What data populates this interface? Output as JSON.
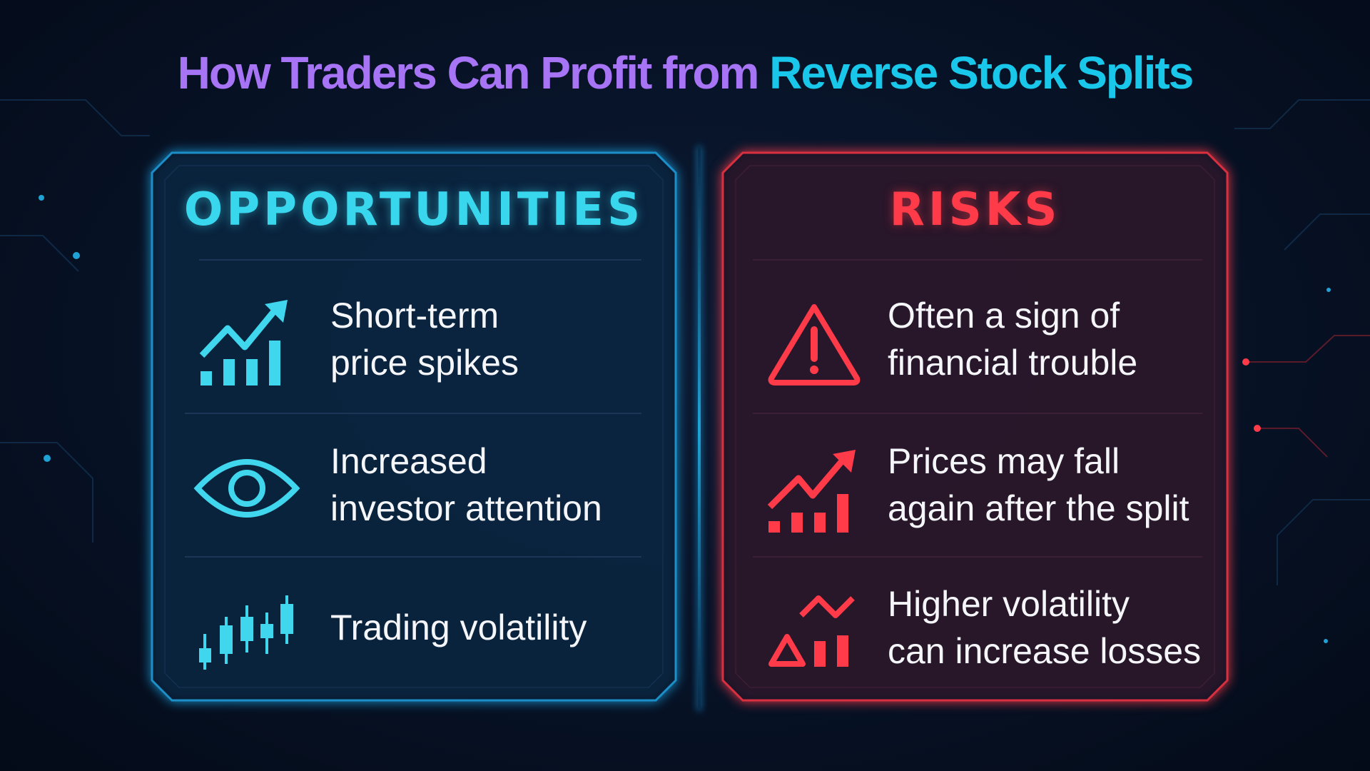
{
  "title": {
    "part1": "How Traders Can Profit from",
    "part2": "Reverse Stock Splits"
  },
  "colors": {
    "purple": "#a774f5",
    "cyan": "#19c7ea",
    "red": "#ff3b4a",
    "background": "#071226"
  },
  "opportunities": {
    "heading": "OPPORTUNITIES",
    "items": [
      {
        "icon": "rising-chart-icon",
        "line1": "Short-term",
        "line2": "price spikes"
      },
      {
        "icon": "eye-icon",
        "line1": "Increased",
        "line2": "investor attention"
      },
      {
        "icon": "candlestick-icon",
        "line1": "Trading volatility",
        "line2": ""
      }
    ]
  },
  "risks": {
    "heading": "RISKS",
    "items": [
      {
        "icon": "warning-triangle-icon",
        "line1": "Often a sign of",
        "line2": "financial trouble"
      },
      {
        "icon": "rising-chart-icon",
        "line1": "Prices may fall",
        "line2": "again after the split"
      },
      {
        "icon": "volatility-chart-icon",
        "line1": "Higher volatility",
        "line2": "can increase losses"
      }
    ]
  }
}
